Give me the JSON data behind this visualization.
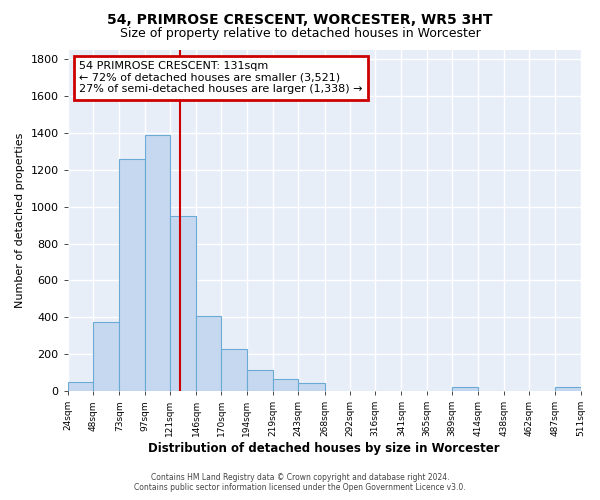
{
  "title": "54, PRIMROSE CRESCENT, WORCESTER, WR5 3HT",
  "subtitle": "Size of property relative to detached houses in Worcester",
  "xlabel": "Distribution of detached houses by size in Worcester",
  "ylabel": "Number of detached properties",
  "footer_line1": "Contains HM Land Registry data © Crown copyright and database right 2024.",
  "footer_line2": "Contains public sector information licensed under the Open Government Licence v3.0.",
  "annotation_line1": "54 PRIMROSE CRESCENT: 131sqm",
  "annotation_line2": "← 72% of detached houses are smaller (3,521)",
  "annotation_line3": "27% of semi-detached houses are larger (1,338) →",
  "property_size": 131,
  "bar_left_edges": [
    24,
    48,
    73,
    97,
    121,
    146,
    170,
    194,
    219,
    243,
    268,
    292,
    316,
    341,
    365,
    389,
    414,
    438,
    462,
    487
  ],
  "bar_widths": [
    24,
    25,
    24,
    24,
    25,
    24,
    24,
    25,
    24,
    25,
    24,
    24,
    25,
    24,
    24,
    25,
    24,
    24,
    25,
    24
  ],
  "bar_heights": [
    50,
    375,
    1260,
    1390,
    950,
    405,
    230,
    115,
    65,
    45,
    0,
    0,
    0,
    0,
    0,
    20,
    0,
    0,
    0,
    20
  ],
  "bar_color": "#c5d8f0",
  "bar_edge_color": "#6aaad4",
  "red_line_color": "#cc0000",
  "annotation_box_color": "#cc0000",
  "background_color": "#e8eef8",
  "grid_color": "#ffffff",
  "ylim": [
    0,
    1850
  ],
  "yticks": [
    0,
    200,
    400,
    600,
    800,
    1000,
    1200,
    1400,
    1600,
    1800
  ],
  "tick_labels": [
    "24sqm",
    "48sqm",
    "73sqm",
    "97sqm",
    "121sqm",
    "146sqm",
    "170sqm",
    "194sqm",
    "219sqm",
    "243sqm",
    "268sqm",
    "292sqm",
    "316sqm",
    "341sqm",
    "365sqm",
    "389sqm",
    "414sqm",
    "438sqm",
    "462sqm",
    "487sqm",
    "511sqm"
  ]
}
